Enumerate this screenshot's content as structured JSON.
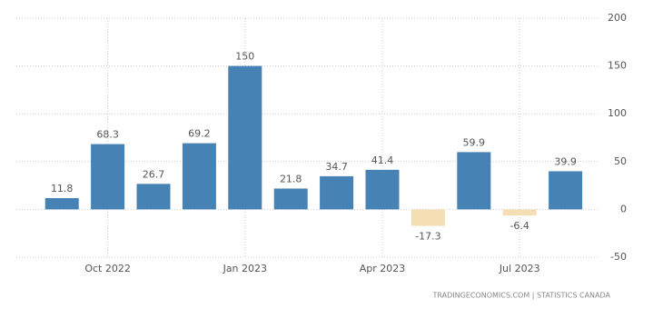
{
  "chart_data": {
    "type": "bar",
    "categories": [
      null,
      "Oct 2022",
      null,
      null,
      "Jan 2023",
      null,
      null,
      "Apr 2023",
      null,
      null,
      "Jul 2023",
      null
    ],
    "values": [
      11.8,
      68.3,
      26.7,
      69.2,
      150,
      21.8,
      34.7,
      41.4,
      -17.3,
      59.9,
      -6.4,
      39.9
    ],
    "colors": [
      "#4682b4",
      "#4682b4",
      "#4682b4",
      "#4682b4",
      "#4682b4",
      "#4682b4",
      "#4682b4",
      "#4682b4",
      "#f5deb3",
      "#4682b4",
      "#f5deb3",
      "#4682b4"
    ],
    "ylim": [
      -50,
      200
    ],
    "yticks": [
      -50,
      0,
      50,
      100,
      150,
      200
    ],
    "grid": true,
    "source": "TRADINGECONOMICS.COM  |  STATISTICS CANADA"
  }
}
